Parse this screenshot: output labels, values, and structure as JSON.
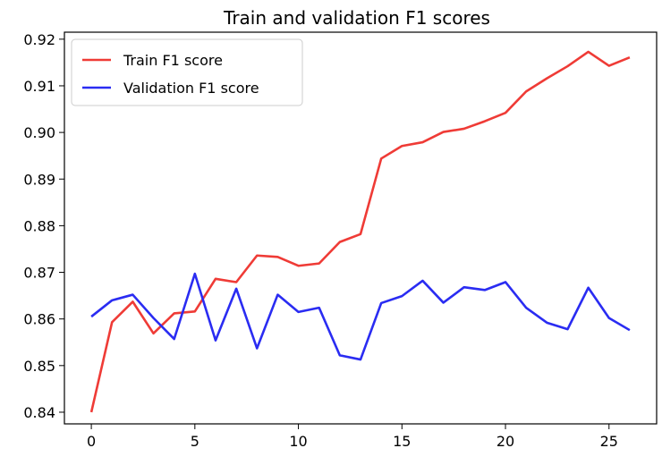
{
  "chart_data": {
    "type": "line",
    "title": "Train and validation F1 scores",
    "xlabel": "",
    "ylabel": "",
    "xlim": [
      -1.3,
      27.3
    ],
    "ylim": [
      0.8375,
      0.9215
    ],
    "x_ticks": [
      0,
      5,
      10,
      15,
      20,
      25
    ],
    "y_ticks": [
      0.84,
      0.85,
      0.86,
      0.87,
      0.88,
      0.89,
      0.9,
      0.91,
      0.92
    ],
    "x_tick_labels": [
      "0",
      "5",
      "10",
      "15",
      "20",
      "25"
    ],
    "y_tick_labels": [
      "0.84",
      "0.85",
      "0.86",
      "0.87",
      "0.88",
      "0.89",
      "0.90",
      "0.91",
      "0.92"
    ],
    "grid": false,
    "legend_position": "upper-left",
    "x": [
      0,
      1,
      2,
      3,
      4,
      5,
      6,
      7,
      8,
      9,
      10,
      11,
      12,
      13,
      14,
      15,
      16,
      17,
      18,
      19,
      20,
      21,
      22,
      23,
      24,
      25,
      26
    ],
    "series": [
      {
        "name": "Train F1 score",
        "color": "#ef3b36",
        "values": [
          0.84,
          0.8593,
          0.8637,
          0.8569,
          0.8612,
          0.8616,
          0.8686,
          0.8679,
          0.8736,
          0.8733,
          0.8714,
          0.8719,
          0.8765,
          0.8782,
          0.8944,
          0.8971,
          0.8979,
          0.9001,
          0.9008,
          0.9024,
          0.9042,
          0.9088,
          0.9116,
          0.9142,
          0.9173,
          0.9143,
          0.9161
        ]
      },
      {
        "name": "Validation F1 score",
        "color": "#2a2cf2",
        "values": [
          0.8605,
          0.864,
          0.8652,
          0.8602,
          0.8557,
          0.8697,
          0.8554,
          0.8665,
          0.8537,
          0.8652,
          0.8615,
          0.8624,
          0.8522,
          0.8513,
          0.8634,
          0.8649,
          0.8682,
          0.8635,
          0.8668,
          0.8662,
          0.8679,
          0.8624,
          0.8592,
          0.8578,
          0.8667,
          0.8602,
          0.8576
        ]
      }
    ]
  }
}
